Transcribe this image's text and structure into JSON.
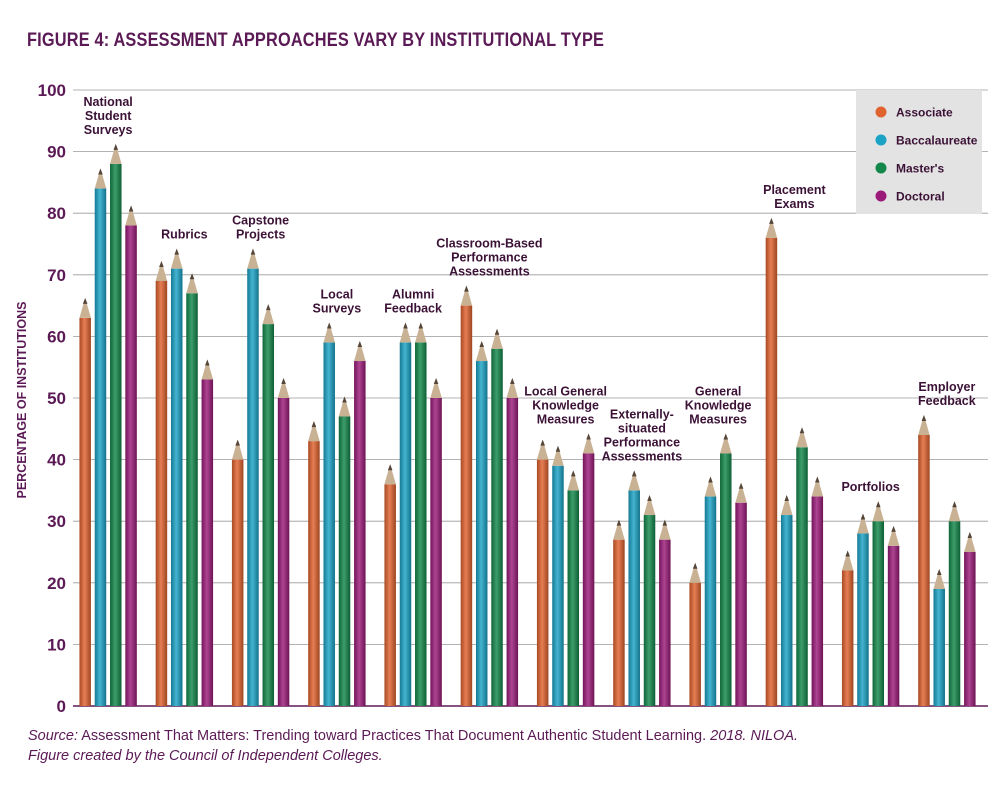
{
  "title": "FIGURE 4: ASSESSMENT APPROACHES VARY BY INSTITUTIONAL TYPE",
  "source": {
    "label": "Source:",
    "text": "Assessment That Matters: Trending toward Practices That Document Authentic Student Learning.",
    "year": "2018. NILOA.",
    "credit": "Figure created by the Council of Independent Colleges."
  },
  "colors": {
    "Associate": "#e0622e",
    "Baccalaureate": "#1ba3c6",
    "Master's": "#13884a",
    "Doctoral": "#9b1b7a",
    "tip_wood": "#c9b194",
    "tip_lead": "#55463a",
    "text": "#5b1a55",
    "grid": "#9a9a9a",
    "legend_bg": "#e3e3e3"
  },
  "chart_data": {
    "type": "bar",
    "title": "FIGURE 4: ASSESSMENT APPROACHES VARY BY INSTITUTIONAL TYPE",
    "xlabel": "",
    "ylabel": "PERCENTAGE OF INSTITUTIONS",
    "ylim": [
      0,
      100
    ],
    "yticks": [
      0,
      10,
      20,
      30,
      40,
      50,
      60,
      70,
      80,
      90,
      100
    ],
    "grid": true,
    "legend": "top-right",
    "categories": [
      [
        "National",
        "Student",
        "Surveys"
      ],
      [
        "Rubrics"
      ],
      [
        "Capstone",
        "Projects"
      ],
      [
        "Local",
        "Surveys"
      ],
      [
        "Alumni",
        "Feedback"
      ],
      [
        "Classroom-Based",
        "Performance",
        "Assessments"
      ],
      [
        "Local General",
        "Knowledge",
        "Measures"
      ],
      [
        "Externally-",
        "situated",
        "Performance",
        "Assessments"
      ],
      [
        "General",
        "Knowledge",
        "Measures"
      ],
      [
        "Placement",
        "Exams"
      ],
      [
        "Portfolios"
      ],
      [
        "Employer",
        "Feedback"
      ]
    ],
    "series": [
      {
        "name": "Associate",
        "values": [
          63,
          69,
          40,
          43,
          36,
          65,
          40,
          27,
          20,
          76,
          22,
          44
        ]
      },
      {
        "name": "Baccalaureate",
        "values": [
          84,
          71,
          71,
          59,
          59,
          56,
          39,
          35,
          34,
          31,
          28,
          19
        ]
      },
      {
        "name": "Master's",
        "values": [
          88,
          67,
          62,
          47,
          59,
          58,
          35,
          31,
          41,
          42,
          30,
          30
        ]
      },
      {
        "name": "Doctoral",
        "values": [
          78,
          53,
          50,
          56,
          50,
          50,
          41,
          27,
          33,
          34,
          26,
          25
        ]
      }
    ]
  }
}
